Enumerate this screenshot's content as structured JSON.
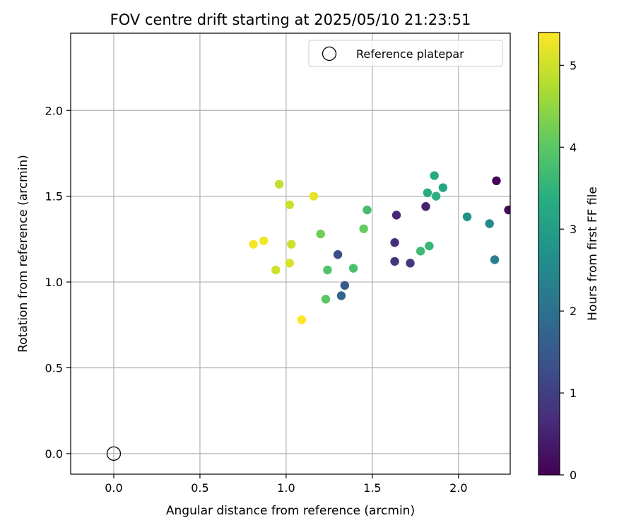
{
  "chart_data": {
    "type": "scatter",
    "title": "FOV centre drift starting at 2025/05/10 21:23:51",
    "xlabel": "Angular distance from reference (arcmin)",
    "ylabel": "Rotation from reference (arcmin)",
    "xlim": [
      -0.25,
      2.3
    ],
    "ylim": [
      -0.12,
      2.45
    ],
    "x_ticks": [
      0.0,
      0.5,
      1.0,
      1.5,
      2.0
    ],
    "x_tick_labels": [
      "0.0",
      "0.5",
      "1.0",
      "1.5",
      "2.0"
    ],
    "y_ticks": [
      0.0,
      0.5,
      1.0,
      1.5,
      2.0
    ],
    "y_tick_labels": [
      "0.0",
      "0.5",
      "1.0",
      "1.5",
      "2.0"
    ],
    "grid": true,
    "legend": {
      "placement": "top-right",
      "entries": [
        {
          "label": "Reference platepar",
          "marker": "open-circle"
        }
      ]
    },
    "reference_point": {
      "x": 0.0,
      "y": 0.0
    },
    "colorbar": {
      "label": "Hours from first FF file",
      "colormap": "viridis",
      "range": [
        0,
        5.4
      ],
      "ticks": [
        0,
        1,
        2,
        3,
        4,
        5
      ],
      "tick_labels": [
        "0",
        "1",
        "2",
        "3",
        "4",
        "5"
      ]
    },
    "points": [
      {
        "x": 2.22,
        "y": 1.59,
        "hours": 0.05
      },
      {
        "x": 2.29,
        "y": 1.42,
        "hours": 0.15
      },
      {
        "x": 1.81,
        "y": 1.44,
        "hours": 0.5
      },
      {
        "x": 1.64,
        "y": 1.39,
        "hours": 0.6
      },
      {
        "x": 1.63,
        "y": 1.23,
        "hours": 0.7
      },
      {
        "x": 1.63,
        "y": 1.12,
        "hours": 0.8
      },
      {
        "x": 1.72,
        "y": 1.11,
        "hours": 0.9
      },
      {
        "x": 1.3,
        "y": 1.16,
        "hours": 1.3
      },
      {
        "x": 1.34,
        "y": 0.98,
        "hours": 1.5
      },
      {
        "x": 1.32,
        "y": 0.92,
        "hours": 1.7
      },
      {
        "x": 2.21,
        "y": 1.13,
        "hours": 2.3
      },
      {
        "x": 2.18,
        "y": 1.34,
        "hours": 2.5
      },
      {
        "x": 2.05,
        "y": 1.38,
        "hours": 2.7
      },
      {
        "x": 1.91,
        "y": 1.55,
        "hours": 3.2
      },
      {
        "x": 1.86,
        "y": 1.62,
        "hours": 3.3
      },
      {
        "x": 1.82,
        "y": 1.52,
        "hours": 3.35
      },
      {
        "x": 1.87,
        "y": 1.5,
        "hours": 3.4
      },
      {
        "x": 1.83,
        "y": 1.21,
        "hours": 3.6
      },
      {
        "x": 1.78,
        "y": 1.18,
        "hours": 3.7
      },
      {
        "x": 1.47,
        "y": 1.42,
        "hours": 3.75
      },
      {
        "x": 1.39,
        "y": 1.08,
        "hours": 3.8
      },
      {
        "x": 1.24,
        "y": 1.07,
        "hours": 3.9
      },
      {
        "x": 1.23,
        "y": 0.9,
        "hours": 4.0
      },
      {
        "x": 1.45,
        "y": 1.31,
        "hours": 4.1
      },
      {
        "x": 1.2,
        "y": 1.28,
        "hours": 4.2
      },
      {
        "x": 0.96,
        "y": 1.57,
        "hours": 4.9
      },
      {
        "x": 1.02,
        "y": 1.45,
        "hours": 4.95
      },
      {
        "x": 1.03,
        "y": 1.22,
        "hours": 5.0
      },
      {
        "x": 0.94,
        "y": 1.07,
        "hours": 5.0
      },
      {
        "x": 1.02,
        "y": 1.11,
        "hours": 5.1
      },
      {
        "x": 1.16,
        "y": 1.5,
        "hours": 5.2
      },
      {
        "x": 0.87,
        "y": 1.24,
        "hours": 5.3
      },
      {
        "x": 0.81,
        "y": 1.22,
        "hours": 5.35
      },
      {
        "x": 1.09,
        "y": 0.78,
        "hours": 5.4
      }
    ]
  }
}
